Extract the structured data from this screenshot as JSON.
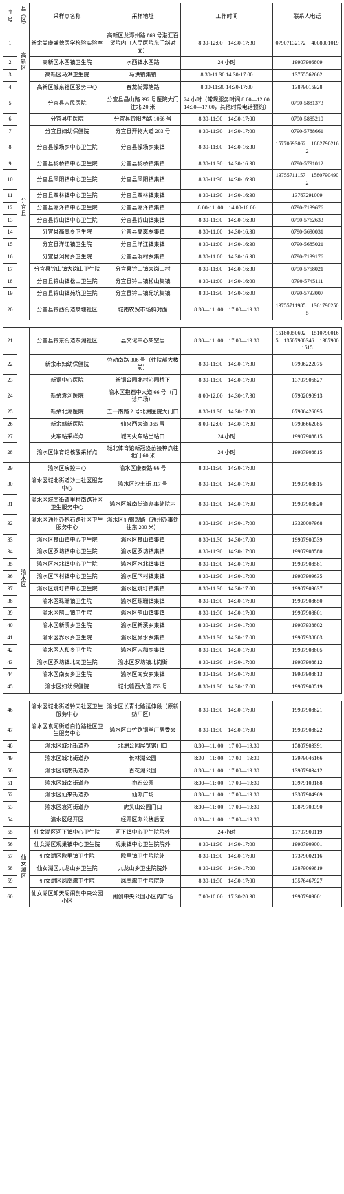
{
  "headers": {
    "seq": "序号",
    "district": "县（区）",
    "site_name": "采样点名称",
    "site_addr": "采样地址",
    "hours": "工作时间",
    "phone": "联系人电话"
  },
  "blocks": [
    {
      "has_header": true,
      "groups": [
        {
          "district": "高新区",
          "rows": [
            {
              "n": "1",
              "name": "新余美康盛德医学检验实验室",
              "addr": "高新区龙潭州路 869 号港汇百货院内（人民医院东门斜对面）",
              "hours": "8:30-12:00　14:30-17:30",
              "phone": "07907132172　4008001019"
            },
            {
              "n": "2",
              "name": "高新区水西镇卫生院",
              "addr": "水西镇水西路",
              "hours": "24 小时",
              "phone": "19907906809"
            },
            {
              "n": "3",
              "name": "高新区马洪卫生院",
              "addr": "马洪镇集镇",
              "hours": "8:30-11:30 14:30-17:00",
              "phone": "13755562662"
            },
            {
              "n": "4",
              "name": "高新区城东社区服务中心",
              "addr": "春龙街潭塘路",
              "hours": "8:30-11:30 14:30-17:00",
              "phone": "13879015928"
            }
          ]
        },
        {
          "district": "分宜县",
          "rows": [
            {
              "n": "5",
              "name": "分宜县人民医院",
              "addr": "分宜县昌山路 392 号医院大门往北 20 米",
              "hours": "24 小时（常规服务时间 8:00—12:00　14:30—17:00，其他时段电话预约）",
              "phone": "0790-5881373"
            },
            {
              "n": "6",
              "name": "分宜县中医院",
              "addr": "分宜县钤阳西路 1066 号",
              "hours": "8:30-11:30　14:30-17:00",
              "phone": "0790-5885210"
            },
            {
              "n": "7",
              "name": "分宜县妇幼保健院",
              "addr": "分宜县开物大道 203 号",
              "hours": "8:30-11:30　14:30-17:00",
              "phone": "0790-5788661"
            },
            {
              "n": "8",
              "name": "分宜县操场乡中心卫生院",
              "addr": "分宜县操场乡集镇",
              "hours": "8:30-11:00　14:30-16:30",
              "phone": "15770693062　18827902162"
            },
            {
              "n": "9",
              "name": "分宜县杨桥镇中心卫生院",
              "addr": "分宜县杨桥镇集镇",
              "hours": "8:30-11:30　14:30-16:30",
              "phone": "0790-5791012"
            },
            {
              "n": "10",
              "name": "分宜县凤阳镇中心卫生院",
              "addr": "分宜县凤阳镇集镇",
              "hours": "8:30-11:30　14:30-16:30",
              "phone": "13755711157　15807904902"
            },
            {
              "n": "11",
              "name": "分宜县双林镇中心卫生院",
              "addr": "分宜县双林镇集镇",
              "hours": "8:30-11:30　14:30-16:30",
              "phone": "13767291009"
            },
            {
              "n": "12",
              "name": "分宜县湖泽镇中心卫生院",
              "addr": "分宜县湖泽镇集镇",
              "hours": "8:00-11: 00　14:00-16:00",
              "phone": "0790-7139676"
            },
            {
              "n": "13",
              "name": "分宜县钤山镇中心卫生院",
              "addr": "分宜县钤山镇集镇",
              "hours": "8:30-11:30　14:30-16:30",
              "phone": "0790-5762633"
            },
            {
              "n": "14",
              "name": "分宜县高岚乡卫生院",
              "addr": "分宜县高岚乡集镇",
              "hours": "8:30-11:00　14:30-16:30",
              "phone": "0790-5690031"
            },
            {
              "n": "15",
              "name": "分宜县洋江镇卫生院",
              "addr": "分宜县洋江镇集镇",
              "hours": "8:30-11:00　14:30-16:30",
              "phone": "0790-5685021"
            },
            {
              "n": "16",
              "name": "分宜县洞村乡卫生院",
              "addr": "分宜县洞村乡集镇",
              "hours": "8:30-11:00　14:30-16:30",
              "phone": "0790-7139176"
            },
            {
              "n": "17",
              "name": "分宜县钤山镇大岗山卫生院",
              "addr": "分宜县钤山镇大岗山村",
              "hours": "8:30-11:00　14:30-16:30",
              "phone": "0790-5758021"
            },
            {
              "n": "18",
              "name": "分宜县钤山镇松山卫生院",
              "addr": "分宜县钤山镇松山集镇",
              "hours": "8:30-11:00　14:30-16:00",
              "phone": "0790-5745111"
            },
            {
              "n": "19",
              "name": "分宜县钤山镇苑坑卫生院",
              "addr": "分宜县钤山镇苑坑集镇",
              "hours": "8:30-11:30　14:30-16:00",
              "phone": "0790-5733007"
            },
            {
              "n": "20",
              "name": "分宜县钤西街道泉塘社区",
              "addr": "城南农贸市场斜对面",
              "hours": "8:30—11: 00　17:00—19:30",
              "phone": "13755711985　13617902505"
            }
          ]
        }
      ]
    },
    {
      "has_header": false,
      "groups": [
        {
          "district": "",
          "rows": [
            {
              "n": "21",
              "name": "分宜县钤东街道东湖社区",
              "addr": "县文化中心架空层",
              "hours": "8:30—11: 00　17:00—19:30",
              "phone": "15180050692　15107900165　13507900346　13879001515"
            },
            {
              "n": "22",
              "name": "新余市妇幼保健院",
              "addr": "劳动南路 306 号（住院部大楼前）",
              "hours": "8:30-11:30　14:30-17:30",
              "phone": "07906222075"
            },
            {
              "n": "23",
              "name": "新钢中心医院",
              "addr": "新钢公园北村沁园桥下",
              "hours": "8:30-11:30　14:30-17:00",
              "phone": "13707906827"
            },
            {
              "n": "24",
              "name": "新余袁河医院",
              "addr": "渝水区抱石中大道 66 号（门诊广场）",
              "hours": "8:00-12:00　14:30-17:30",
              "phone": "07902090913"
            },
            {
              "n": "25",
              "name": "新余北湖医院",
              "addr": "五一南路 2 号北湖医院大门口",
              "hours": "8:30-11:30　14:30-17:00",
              "phone": "07906426095"
            },
            {
              "n": "26",
              "name": "新余赣新医院",
              "addr": "仙来西大道 365 号",
              "hours": "8:00-12:00　14:30-17:30",
              "phone": "07906662085"
            },
            {
              "n": "27",
              "name": "火车站采样点",
              "addr": "城南火车站出站口",
              "hours": "24 小时",
              "phone": "19907908815"
            },
            {
              "n": "28",
              "name": "渝水区体育馆核酸采样点",
              "addr": "城北体育馆新冠疫苗接种点往北门 60 米",
              "hours": "24 小时",
              "phone": "19907908815"
            }
          ]
        },
        {
          "district": "渝水区",
          "rows": [
            {
              "n": "29",
              "name": "渝水区疾控中心",
              "addr": "渝水区康泰路 66 号",
              "hours": "8:30-11:30　14:30-17:00",
              "phone": ""
            },
            {
              "n": "30",
              "name": "渝水区城北街道沙土社区服务中心",
              "addr": "渝水区沙土街 317 号",
              "hours": "8:30-11:30　14:30-17:00",
              "phone": "19907908815"
            },
            {
              "n": "31",
              "name": "渝水区城南街道里村南路社区卫生服务中心",
              "addr": "渝水区城南街道办事处院内",
              "hours": "8:30-11:30　14:30-17:00",
              "phone": "19907908820"
            },
            {
              "n": "32",
              "name": "渝水区通州办抱石路社区卫生服务中心",
              "addr": "渝水区仙锦观路（通州办事处往东 200 米）",
              "hours": "8:30-11:30　14:30-17:00",
              "phone": "13320007968"
            },
            {
              "n": "33",
              "name": "渝水区良山镇中心卫生院",
              "addr": "渝水区良山镇集镇",
              "hours": "8:30-11:30　14:30-17:00",
              "phone": "19907908539"
            },
            {
              "n": "34",
              "name": "渝水区罗坊镇中心卫生院",
              "addr": "渝水区罗坊镇集镇",
              "hours": "8:30-11:30　14:30-17:00",
              "phone": "19907908580"
            },
            {
              "n": "35",
              "name": "渝水区水北镇中心卫生院",
              "addr": "渝水区水北镇集镇",
              "hours": "8:30-11:30　14:30-17:00",
              "phone": "19907908581"
            },
            {
              "n": "36",
              "name": "渝水区下村镇中心卫生院",
              "addr": "渝水区下村镇集镇",
              "hours": "8:30-11:30　14:30-17:00",
              "phone": "19907909635"
            },
            {
              "n": "37",
              "name": "渝水区姚圩镇中心卫生院",
              "addr": "渝水区姚圩镇集镇",
              "hours": "8:30-11:30　14:30-17:00",
              "phone": "19907909637"
            },
            {
              "n": "38",
              "name": "渝水区珠珊镇卫生院",
              "addr": "渝水区珠珊镇集镇",
              "hours": "8:30-11:30　14:30-17:00",
              "phone": "19907908650"
            },
            {
              "n": "39",
              "name": "渝水区鹄山镇卫生院",
              "addr": "渝水区鹄山镇集镇",
              "hours": "8:30-11:30　14:30-17:00",
              "phone": "19907908801"
            },
            {
              "n": "40",
              "name": "渝水区新溪乡卫生院",
              "addr": "渝水区新溪乡集镇",
              "hours": "8:30-11:30　14:30-17:00",
              "phone": "19907938802"
            },
            {
              "n": "41",
              "name": "渝水区界水乡卫生院",
              "addr": "渝水区界水乡集镇",
              "hours": "8:30-11:30　14:30-17:00",
              "phone": "19907938803"
            },
            {
              "n": "42",
              "name": "渝水区人和乡卫生院",
              "addr": "渝水区人和乡集镇",
              "hours": "8:30-11:30　14:30-17:00",
              "phone": "19907908805"
            },
            {
              "n": "43",
              "name": "渝水区罗坊镇北岗卫生院",
              "addr": "渝水区罗坊镇北岗街",
              "hours": "8:30-11:30　14:30-17:00",
              "phone": "19907908812"
            },
            {
              "n": "44",
              "name": "渝水区南安乡卫生院",
              "addr": "渝水区南安乡集镇",
              "hours": "8:30-11:30　14:30-17:00",
              "phone": "19907908813"
            },
            {
              "n": "45",
              "name": "渝水区妇幼保健院",
              "addr": "城北赣西大道 753 号",
              "hours": "8:30-11:30　14:30-17:00",
              "phone": "19907908519"
            }
          ]
        }
      ]
    },
    {
      "has_header": false,
      "groups": [
        {
          "district": "",
          "rows": [
            {
              "n": "46",
              "name": "渝水区城北街道钤天社区卫生服务中心",
              "addr": "渝水区长青北路延伸段（原新纺厂区）",
              "hours": "8:30-11:30　14:30-17:00",
              "phone": "19907908821"
            },
            {
              "n": "47",
              "name": "渝水区袁河街道白竹路社区卫生服务中心",
              "addr": "渝水区白竹路钢丝厂居委会",
              "hours": "8:30-11:30　14:30-17:00",
              "phone": "19907908822"
            },
            {
              "n": "48",
              "name": "渝水区城北街道办",
              "addr": "北湖公园展览馆门口",
              "hours": "8:30—11: 00　17:00—19:30",
              "phone": "15807903391"
            },
            {
              "n": "49",
              "name": "渝水区城北街道办",
              "addr": "长林湖公园",
              "hours": "8:30—11: 00　17:00—19:30",
              "phone": "13979046166"
            },
            {
              "n": "50",
              "name": "渝水区城南街道办",
              "addr": "百花湖公园",
              "hours": "8:30—11: 00　17:00—19:30",
              "phone": "13907903412"
            },
            {
              "n": "51",
              "name": "渝水区城南街道办",
              "addr": "抱石公园",
              "hours": "8:30—11: 00　17:00—19:30",
              "phone": "13979103188"
            },
            {
              "n": "52",
              "name": "渝水区仙来街道办",
              "addr": "仙办广场",
              "hours": "8:30—11: 00　17:00—19:30",
              "phone": "13307904969"
            },
            {
              "n": "53",
              "name": "渝水区袁河街道办",
              "addr": "虎头山公园门口",
              "hours": "8:30—11: 00　17:00—19:30",
              "phone": "13879703390"
            },
            {
              "n": "54",
              "name": "渝水区经开区",
              "addr": "经开区办公楼后面",
              "hours": "8:30—11: 00　17:00—19:30",
              "phone": ""
            }
          ]
        },
        {
          "district": "仙女湖区",
          "rows": [
            {
              "n": "55",
              "name": "仙女湖区河下镇中心卫生院",
              "addr": "河下镇中心卫生院院外",
              "hours": "24 小时",
              "phone": "17707900119"
            },
            {
              "n": "56",
              "name": "仙女湖区观巢镇中心卫生院",
              "addr": "观巢镇中心卫生院院外",
              "hours": "8:30-11:30　14:30-17:00",
              "phone": "19907909001"
            },
            {
              "n": "57",
              "name": "仙女湖区欧里镇卫生院",
              "addr": "欧里镇卫生院院外",
              "hours": "8:30-11:30　14:30-17:00",
              "phone": "17379002116"
            },
            {
              "n": "58",
              "name": "仙女湖区九龙山乡卫生院",
              "addr": "九龙山乡卫生院院外",
              "hours": "8:30-11:30　14:30-17:00",
              "phone": "13879069819"
            },
            {
              "n": "59",
              "name": "仙女湖区凤凰湾卫生院",
              "addr": "凤凰湾卫生院院外",
              "hours": "8:30-11:30　14:30-17:00",
              "phone": "13576467927"
            },
            {
              "n": "60",
              "name": "仙女湖区卸天阁闹创中央公园小区",
              "addr": "闹创中央公园小区内广场",
              "hours": "7:00-10:00　17:30-20:30",
              "phone": "19907909001"
            }
          ]
        }
      ]
    }
  ]
}
